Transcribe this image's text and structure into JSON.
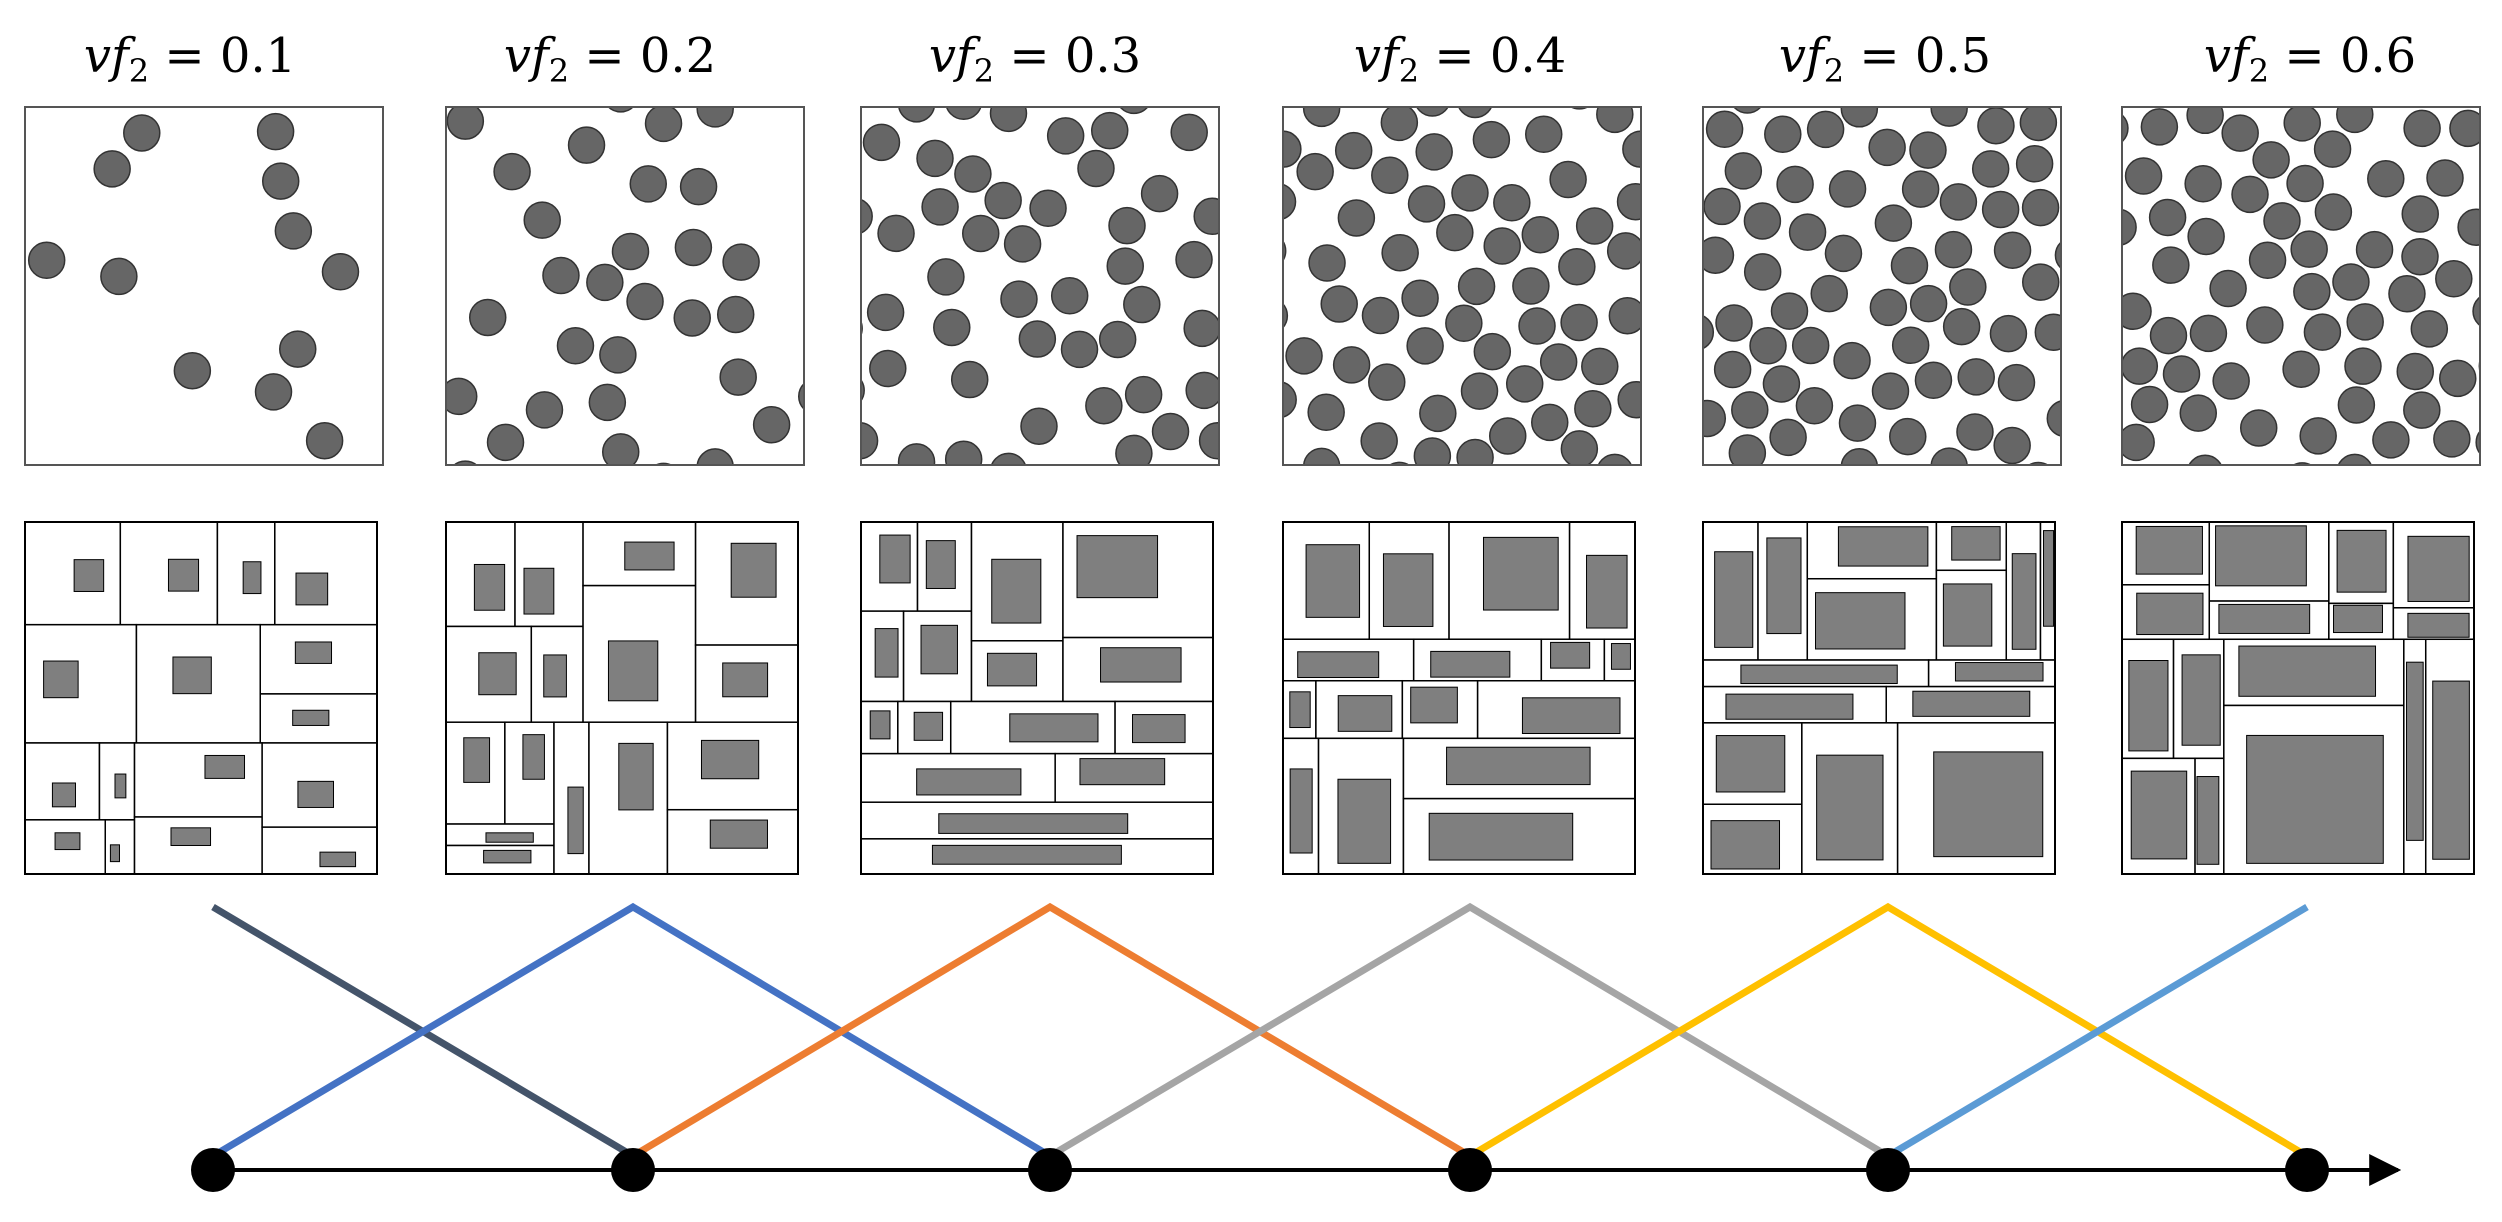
{
  "labels": [
    {
      "var": "vf",
      "sub": "2",
      "eq": " = ",
      "value": "0.1"
    },
    {
      "var": "vf",
      "sub": "2",
      "eq": " = ",
      "value": "0.2"
    },
    {
      "var": "vf",
      "sub": "2",
      "eq": " = ",
      "value": "0.3"
    },
    {
      "var": "vf",
      "sub": "2",
      "eq": " = ",
      "value": "0.4"
    },
    {
      "var": "vf",
      "sub": "2",
      "eq": " = ",
      "value": "0.5"
    },
    {
      "var": "vf",
      "sub": "2",
      "eq": " = ",
      "value": "0.6"
    }
  ],
  "colors": {
    "particle": "#666666",
    "particle_stroke": "#333333",
    "frame": "#555555",
    "partition_fill": "#7f7f7f",
    "axis": "#000000",
    "basis": [
      "#44546a",
      "#4472c4",
      "#ed7d31",
      "#a5a5a5",
      "#ffc000",
      "#5b9bd5"
    ]
  }
}
